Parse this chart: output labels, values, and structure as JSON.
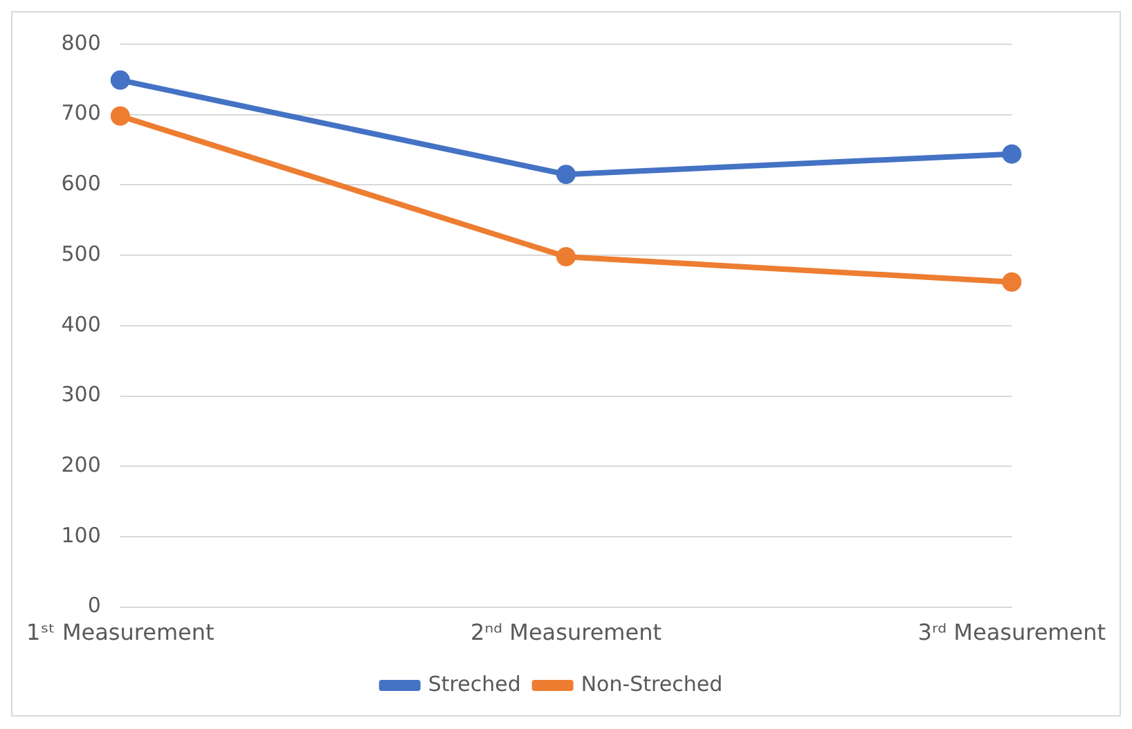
{
  "chart_data": {
    "type": "line",
    "categories": [
      "1ˢᵗ Measurement",
      "2ⁿᵈ Measurement",
      "3ʳᵈ Measurement"
    ],
    "series": [
      {
        "name": "Streched",
        "color": "#4472c4",
        "values": [
          749,
          615,
          644
        ]
      },
      {
        "name": "Non-Streched",
        "color": "#ed7d31",
        "values": [
          698,
          498,
          462
        ]
      }
    ],
    "ylim": [
      0,
      800
    ],
    "yticks": [
      0,
      100,
      200,
      300,
      400,
      500,
      600,
      700,
      800
    ],
    "grid": "y",
    "legend": "bottom",
    "marker": "circle",
    "line_style": "solid"
  }
}
